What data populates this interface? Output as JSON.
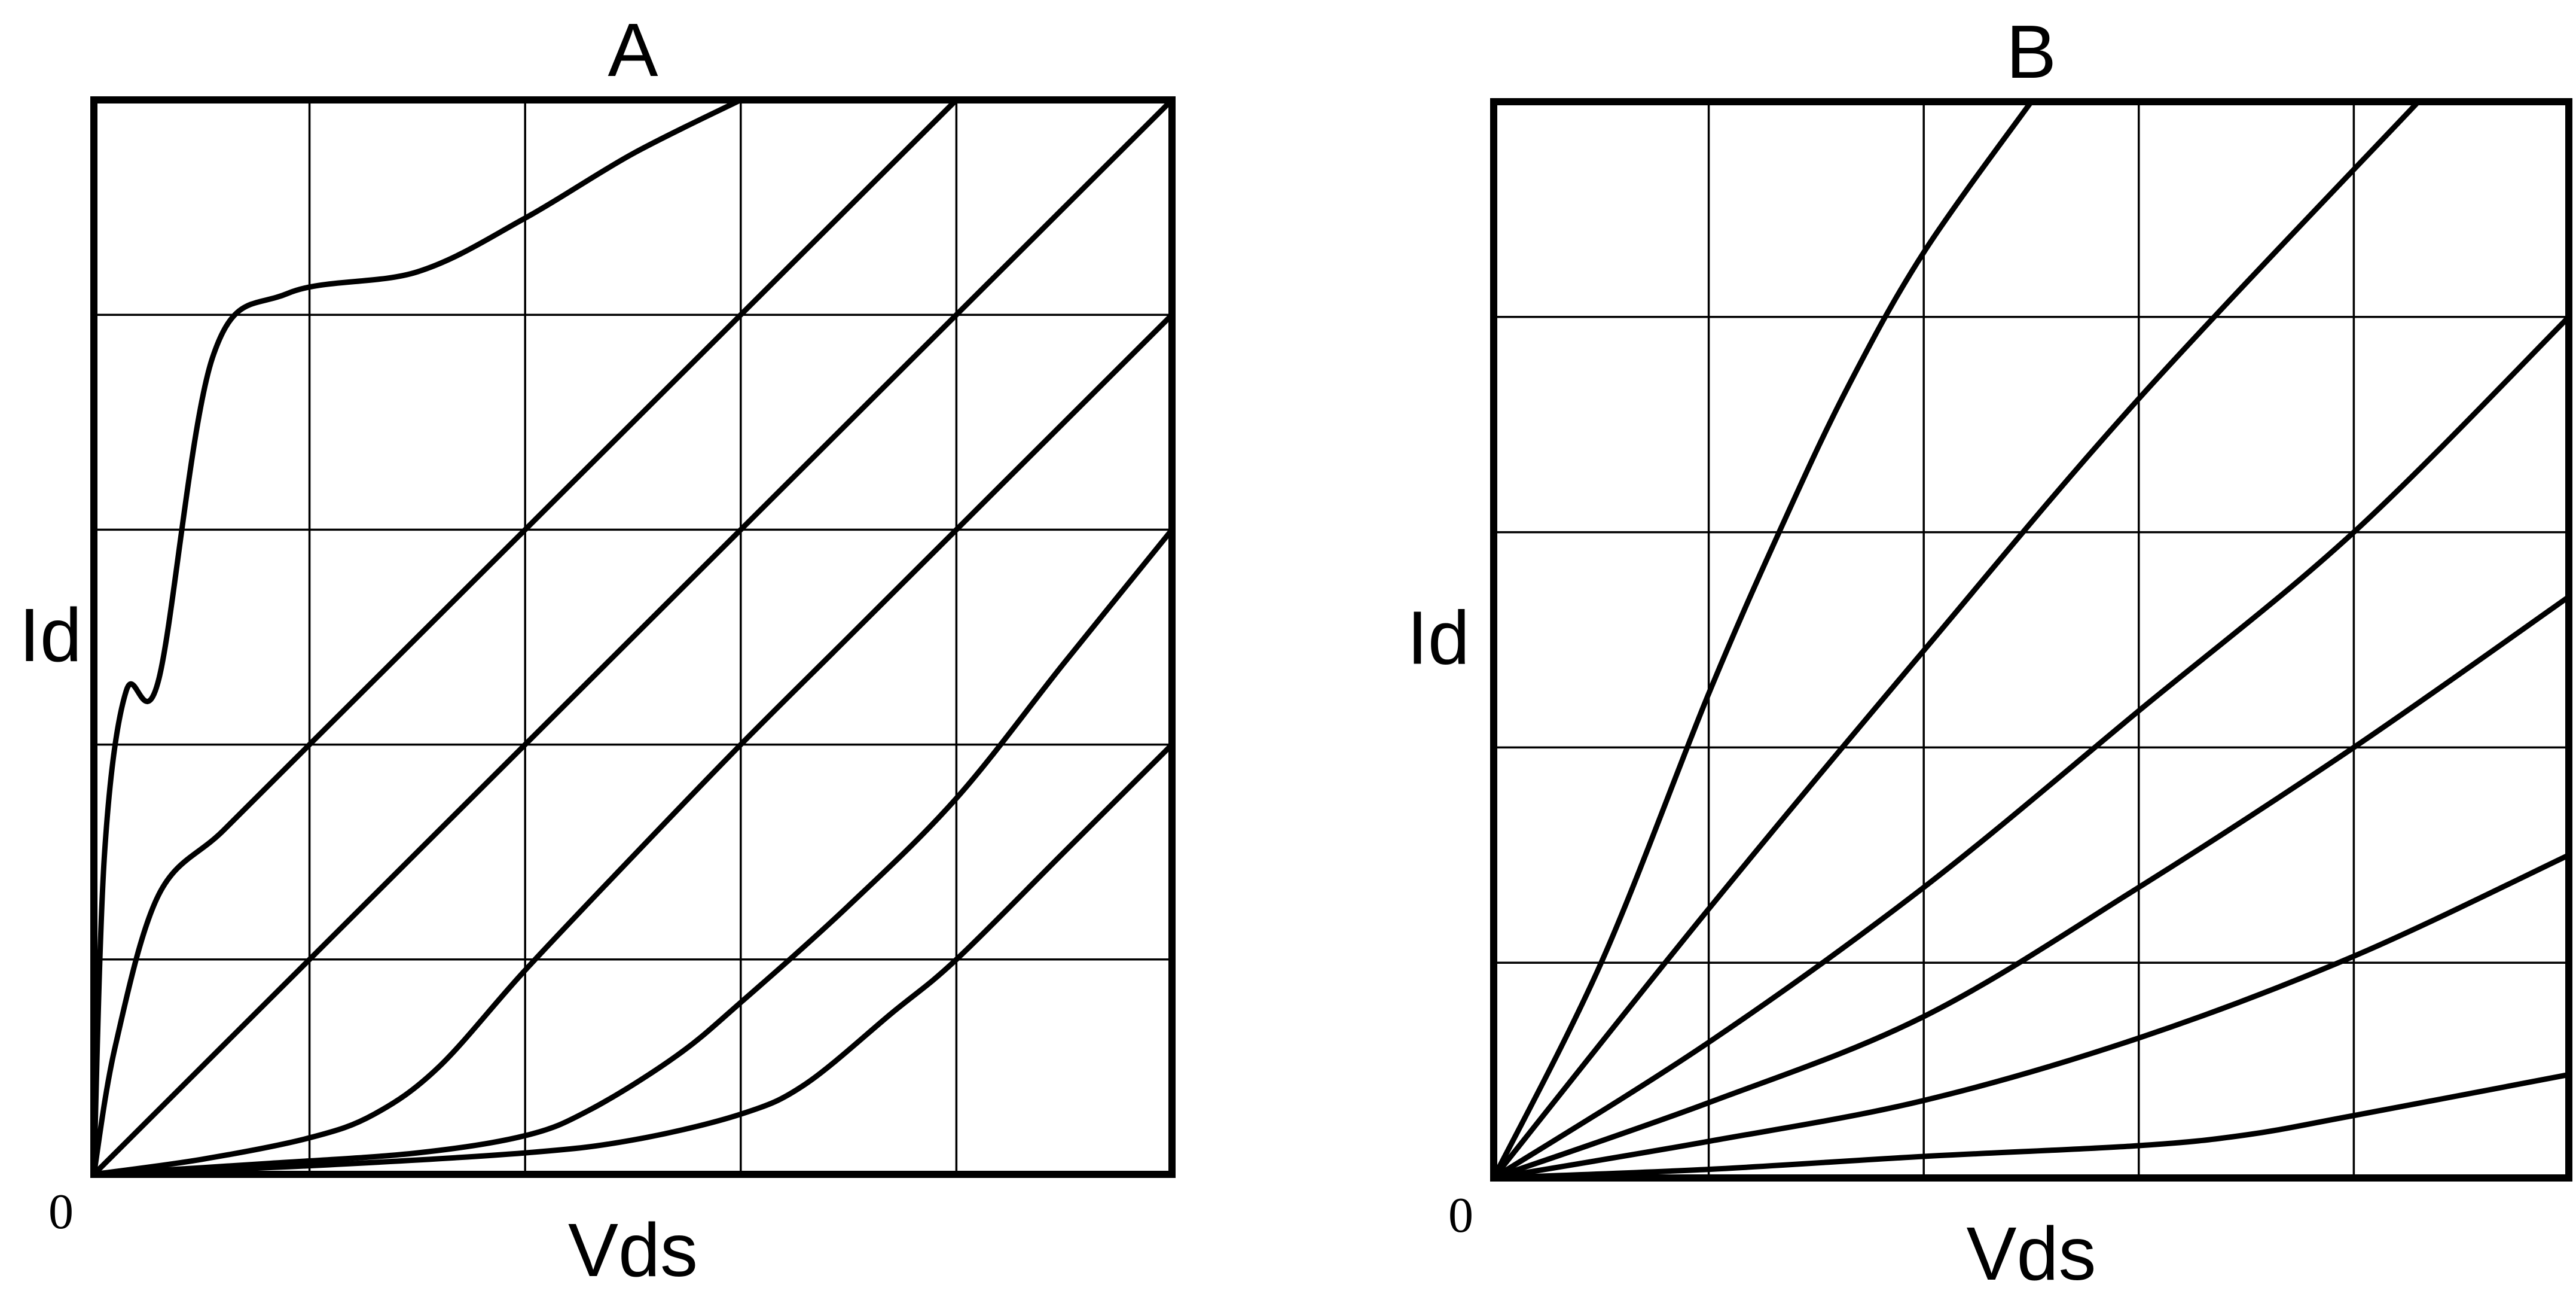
{
  "chart_data": [
    {
      "type": "line",
      "title": "A",
      "xlabel": "Vds",
      "ylabel": "Id",
      "origin_label": "0",
      "xlim": [
        0,
        5
      ],
      "ylim": [
        0,
        5
      ],
      "grid": true,
      "series": [
        {
          "x": [
            0,
            0.05,
            0.15,
            0.3,
            0.55,
            0.9,
            1.5,
            2.0,
            2.5,
            3.0
          ],
          "y": [
            0,
            1.5,
            2.25,
            2.3,
            3.8,
            4.1,
            4.2,
            4.45,
            4.75,
            5.0
          ]
        },
        {
          "x": [
            0,
            0.1,
            0.3,
            0.6,
            1.0,
            1.5,
            2.0,
            2.5,
            3.0,
            3.5,
            4.0
          ],
          "y": [
            0,
            0.6,
            1.3,
            1.6,
            2.0,
            2.5,
            3.0,
            3.5,
            4.0,
            4.5,
            5.0
          ]
        },
        {
          "x": [
            0,
            1.0,
            2.0,
            3.0,
            4.0,
            5.0
          ],
          "y": [
            0,
            1.0,
            2.0,
            3.0,
            4.0,
            5.0
          ]
        },
        {
          "x": [
            0,
            0.5,
            1.0,
            1.3,
            1.6,
            2.0,
            2.5,
            3.0,
            3.5,
            4.0,
            4.5,
            5.0
          ],
          "y": [
            0,
            0.07,
            0.17,
            0.28,
            0.5,
            0.95,
            1.48,
            2.0,
            2.5,
            3.0,
            3.5,
            4.0
          ]
        },
        {
          "x": [
            0,
            0.8,
            1.5,
            2.0,
            2.3,
            2.7,
            3.0,
            3.5,
            4.0,
            4.5,
            5.0
          ],
          "y": [
            0,
            0.05,
            0.1,
            0.18,
            0.3,
            0.55,
            0.8,
            1.25,
            1.75,
            2.38,
            3.0
          ]
        },
        {
          "x": [
            0,
            1.0,
            2.0,
            2.5,
            3.0,
            3.3,
            3.7,
            4.0,
            4.5,
            5.0
          ],
          "y": [
            0,
            0.04,
            0.1,
            0.16,
            0.28,
            0.42,
            0.75,
            1.0,
            1.5,
            2.0
          ]
        }
      ]
    },
    {
      "type": "line",
      "title": "B",
      "xlabel": "Vds",
      "ylabel": "Id",
      "origin_label": "0",
      "xlim": [
        0,
        5
      ],
      "ylim": [
        0,
        5
      ],
      "grid": true,
      "series": [
        {
          "x": [
            0,
            0.5,
            1.0,
            1.35,
            1.65,
            2.0,
            2.5
          ],
          "y": [
            0,
            1.0,
            2.25,
            3.05,
            3.68,
            4.3,
            5.0
          ]
        },
        {
          "x": [
            0,
            1.0,
            2.0,
            3.0,
            4.3
          ],
          "y": [
            0,
            1.25,
            2.45,
            3.62,
            5.0
          ]
        },
        {
          "x": [
            0,
            1.0,
            2.0,
            3.0,
            4.0,
            5.0
          ],
          "y": [
            0,
            0.63,
            1.35,
            2.17,
            3.0,
            4.0
          ]
        },
        {
          "x": [
            0,
            1.0,
            2.0,
            3.0,
            4.0,
            5.0
          ],
          "y": [
            0,
            0.35,
            0.75,
            1.35,
            2.0,
            2.7
          ]
        },
        {
          "x": [
            0,
            1.0,
            2.0,
            3.0,
            4.0,
            5.0
          ],
          "y": [
            0,
            0.17,
            0.36,
            0.65,
            1.03,
            1.5
          ]
        },
        {
          "x": [
            0,
            1.0,
            2.0,
            3.0,
            3.5,
            4.0,
            5.0
          ],
          "y": [
            0,
            0.04,
            0.1,
            0.15,
            0.2,
            0.29,
            0.48
          ]
        }
      ]
    }
  ]
}
